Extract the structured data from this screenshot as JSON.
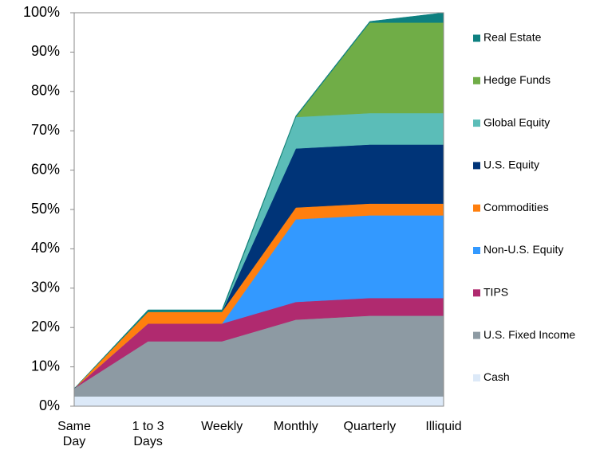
{
  "chart_data": {
    "type": "stacked-area",
    "categories": [
      "Same Day",
      "1 to 3 Days",
      "Weekly",
      "Monthly",
      "Quarterly",
      "Illiquid"
    ],
    "series": [
      {
        "name": "Cash",
        "color": "#dce9f8",
        "values": [
          2.5,
          2.5,
          2.5,
          2.5,
          2.5,
          2.5
        ]
      },
      {
        "name": "U.S. Fixed Income",
        "color": "#8d9aa3",
        "values": [
          2,
          14,
          14,
          19.5,
          20.5,
          20.5
        ]
      },
      {
        "name": "TIPS",
        "color": "#b02a6f",
        "values": [
          0,
          4.5,
          4.5,
          4.5,
          4.5,
          4.5
        ]
      },
      {
        "name": "Non-U.S. Equity",
        "color": "#3399ff",
        "values": [
          0,
          0,
          0,
          21,
          21,
          21
        ]
      },
      {
        "name": "Commodities",
        "color": "#ff7f0e",
        "values": [
          0,
          3,
          3,
          3,
          3,
          3
        ]
      },
      {
        "name": "U.S. Equity",
        "color": "#003478",
        "values": [
          0,
          0,
          0,
          15,
          15,
          15
        ]
      },
      {
        "name": "Global Equity",
        "color": "#5bbdb8",
        "values": [
          0,
          0,
          0,
          8,
          8,
          8
        ]
      },
      {
        "name": "Hedge Funds",
        "color": "#70ad47",
        "values": [
          0,
          0,
          0,
          0,
          23,
          23
        ]
      },
      {
        "name": "Real Estate",
        "color": "#0e8080",
        "values": [
          0,
          0.5,
          0.5,
          0.3,
          0.3,
          2.5
        ]
      }
    ],
    "ylim": [
      0,
      100
    ],
    "yticks": [
      {
        "value": 0,
        "label": "0%"
      },
      {
        "value": 10,
        "label": "10%"
      },
      {
        "value": 20,
        "label": "20%"
      },
      {
        "value": 30,
        "label": "30%"
      },
      {
        "value": 40,
        "label": "40%"
      },
      {
        "value": 50,
        "label": "50%"
      },
      {
        "value": 60,
        "label": "60%"
      },
      {
        "value": 70,
        "label": "70%"
      },
      {
        "value": 80,
        "label": "80%"
      },
      {
        "value": 90,
        "label": "90%"
      },
      {
        "value": 100,
        "label": "100%"
      }
    ],
    "legend": "right"
  }
}
